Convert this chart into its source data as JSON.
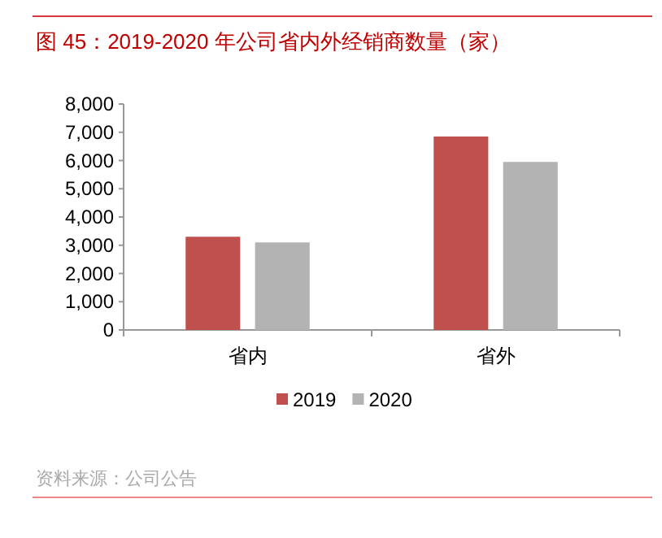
{
  "chart_data": {
    "type": "bar",
    "title": "图 45：2019-2020 年公司省内外经销商数量（家）",
    "categories": [
      "省内",
      "省外"
    ],
    "series": [
      {
        "name": "2019",
        "color": "#c0504d",
        "values": [
          3300,
          6850
        ]
      },
      {
        "name": "2020",
        "color": "#b3b3b3",
        "values": [
          3100,
          5950
        ]
      }
    ],
    "ylim": [
      0,
      8000
    ],
    "yticks": [
      {
        "value": 0,
        "label": "0"
      },
      {
        "value": 1000,
        "label": "1,000"
      },
      {
        "value": 2000,
        "label": "2,000"
      },
      {
        "value": 3000,
        "label": "3,000"
      },
      {
        "value": 4000,
        "label": "4,000"
      },
      {
        "value": 5000,
        "label": "5,000"
      },
      {
        "value": 6000,
        "label": "6,000"
      },
      {
        "value": 7000,
        "label": "7,000"
      },
      {
        "value": 8000,
        "label": "8,000"
      }
    ],
    "grid": false,
    "legend": "bottom",
    "annotations": [
      "资料来源：公司公告"
    ]
  }
}
